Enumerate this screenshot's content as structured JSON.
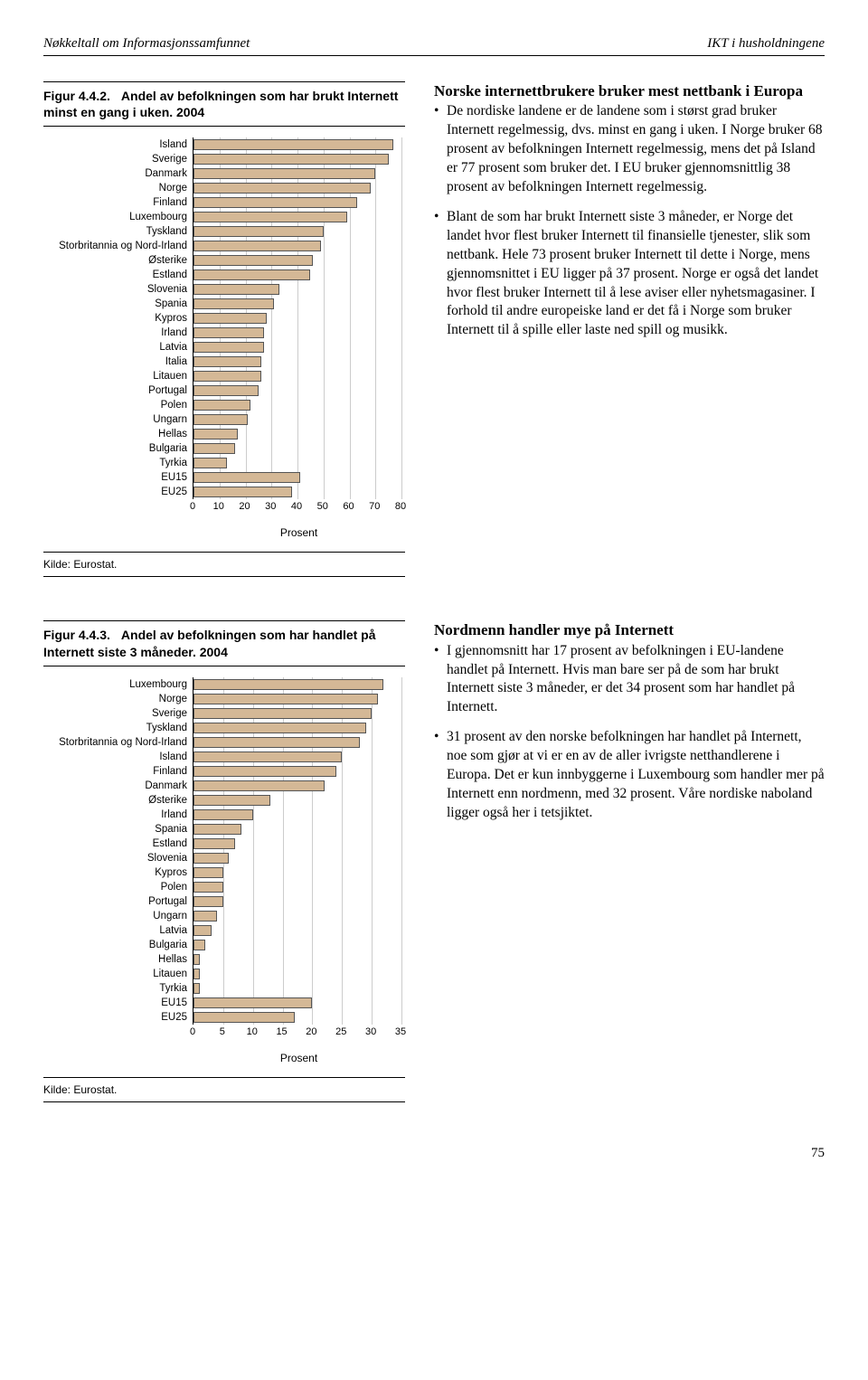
{
  "header": {
    "left": "Nøkkeltall om Informasjonssamfunnet",
    "right": "IKT i husholdningene"
  },
  "page_number": "75",
  "fig1": {
    "num": "Figur 4.4.2.",
    "title": "Andel av befolkningen som har brukt Internett minst en gang i uken. 2004",
    "source": "Kilde: Eurostat.",
    "xlabel": "Prosent",
    "xmax": 80,
    "xticks": [
      0,
      10,
      20,
      30,
      40,
      50,
      60,
      70,
      80
    ],
    "bar_color": "#d4b896",
    "items": [
      {
        "label": "Island",
        "value": 77
      },
      {
        "label": "Sverige",
        "value": 75
      },
      {
        "label": "Danmark",
        "value": 70
      },
      {
        "label": "Norge",
        "value": 68
      },
      {
        "label": "Finland",
        "value": 63
      },
      {
        "label": "Luxembourg",
        "value": 59
      },
      {
        "label": "Tyskland",
        "value": 50
      },
      {
        "label": "Storbritannia og Nord-Irland",
        "value": 49
      },
      {
        "label": "Østerike",
        "value": 46
      },
      {
        "label": "Estland",
        "value": 45
      },
      {
        "label": "Slovenia",
        "value": 33
      },
      {
        "label": "Spania",
        "value": 31
      },
      {
        "label": "Kypros",
        "value": 28
      },
      {
        "label": "Irland",
        "value": 27
      },
      {
        "label": "Latvia",
        "value": 27
      },
      {
        "label": "Italia",
        "value": 26
      },
      {
        "label": "Litauen",
        "value": 26
      },
      {
        "label": "Portugal",
        "value": 25
      },
      {
        "label": "Polen",
        "value": 22
      },
      {
        "label": "Ungarn",
        "value": 21
      },
      {
        "label": "Hellas",
        "value": 17
      },
      {
        "label": "Bulgaria",
        "value": 16
      },
      {
        "label": "Tyrkia",
        "value": 13
      },
      {
        "label": "EU15",
        "value": 41
      },
      {
        "label": "EU25",
        "value": 38
      }
    ]
  },
  "fig2": {
    "num": "Figur 4.4.3.",
    "title": "Andel av befolkningen som har handlet på Internett siste 3 måneder. 2004",
    "source": "Kilde: Eurostat.",
    "xlabel": "Prosent",
    "xmax": 35,
    "xticks": [
      0,
      5,
      10,
      15,
      20,
      25,
      30,
      35
    ],
    "bar_color": "#d4b896",
    "items": [
      {
        "label": "Luxembourg",
        "value": 32
      },
      {
        "label": "Norge",
        "value": 31
      },
      {
        "label": "Sverige",
        "value": 30
      },
      {
        "label": "Tyskland",
        "value": 29
      },
      {
        "label": "Storbritannia og Nord-Irland",
        "value": 28
      },
      {
        "label": "Island",
        "value": 25
      },
      {
        "label": "Finland",
        "value": 24
      },
      {
        "label": "Danmark",
        "value": 22
      },
      {
        "label": "Østerike",
        "value": 13
      },
      {
        "label": "Irland",
        "value": 10
      },
      {
        "label": "Spania",
        "value": 8
      },
      {
        "label": "Estland",
        "value": 7
      },
      {
        "label": "Slovenia",
        "value": 6
      },
      {
        "label": "Kypros",
        "value": 5
      },
      {
        "label": "Polen",
        "value": 5
      },
      {
        "label": "Portugal",
        "value": 5
      },
      {
        "label": "Ungarn",
        "value": 4
      },
      {
        "label": "Latvia",
        "value": 3
      },
      {
        "label": "Bulgaria",
        "value": 2
      },
      {
        "label": "Hellas",
        "value": 1
      },
      {
        "label": "Litauen",
        "value": 1
      },
      {
        "label": "Tyrkia",
        "value": 1
      },
      {
        "label": "EU15",
        "value": 20
      },
      {
        "label": "EU25",
        "value": 17
      }
    ]
  },
  "text1": {
    "heading": "Norske internettbrukere bruker mest nettbank i Europa",
    "bullets": [
      "De nordiske landene er de landene som i størst grad bruker Internett regelmessig, dvs. minst en gang i uken. I Norge bruker 68 prosent av befolkningen Internett regelmessig, mens det på Island er 77 prosent som bruker det. I EU bruker gjennomsnittlig 38 prosent av befolkningen Internett regelmessig.",
      "Blant de som har brukt Internett siste 3 måneder, er Norge det landet hvor flest bruker Internett til finansielle tjenester, slik som nettbank. Hele 73 prosent bruker Internett til dette i Norge, mens gjennomsnittet i EU ligger på 37 prosent. Norge er også det landet hvor flest bruker Internett til å lese aviser eller nyhetsmagasiner. I forhold til andre europeiske land er det få i Norge som bruker Internett til å spille eller laste ned spill og musikk."
    ]
  },
  "text2": {
    "heading": "Nordmenn handler mye på Internett",
    "bullets": [
      "I gjennomsnitt har 17 prosent av befolkningen i EU-landene handlet på Internett. Hvis man bare ser på de som har brukt Internett siste 3 måneder, er det 34 prosent som har handlet på Internett.",
      "31 prosent av den norske befolkningen har handlet på Internett, noe som gjør at vi er en av de aller ivrigste netthandlerene i Europa. Det er kun innbyggerne i Luxembourg som handler mer på Internett enn nordmenn, med 32 prosent. Våre nordiske naboland ligger også her i tetsjiktet."
    ]
  }
}
